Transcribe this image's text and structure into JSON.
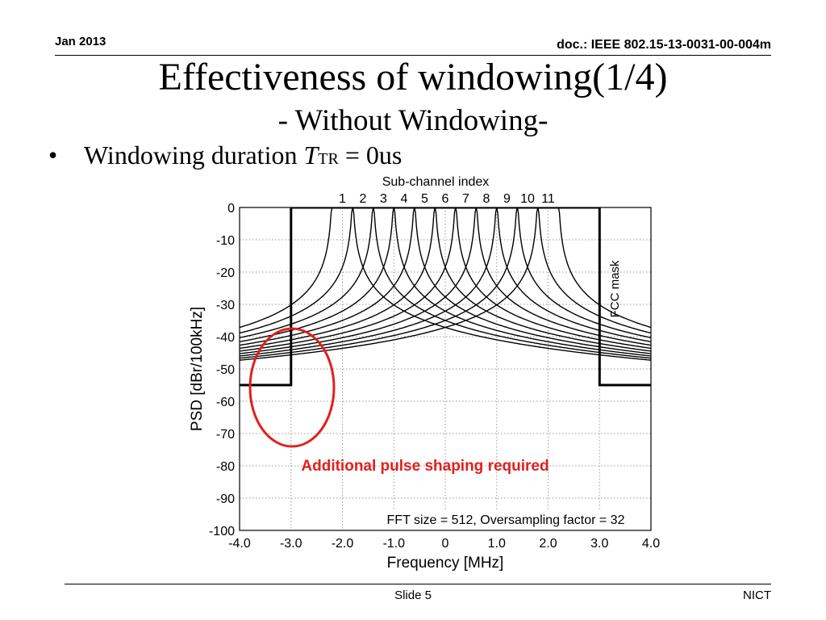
{
  "header": {
    "date": "Jan 2013",
    "doc": "doc.: IEEE 802.15-13-0031-00-004m"
  },
  "slide": {
    "title": "Effectiveness of windowing(1/4)",
    "subtitle": "- Without Windowing-",
    "bullet_prefix": "Windowing duration ",
    "bullet_var": "T",
    "bullet_sub": "TR",
    "bullet_suffix": " = 0us"
  },
  "chart_data": {
    "type": "line",
    "xlabel": "Frequency [MHz]",
    "ylabel": "PSD [dBr/100kHz]",
    "top_axis_label": "Sub-channel index",
    "xlim": [
      -4.0,
      4.0
    ],
    "ylim": [
      -100,
      0
    ],
    "x_ticks": [
      -4.0,
      -3.0,
      -2.0,
      -1.0,
      0,
      1.0,
      2.0,
      3.0,
      4.0
    ],
    "x_tick_labels": [
      "-4.0",
      "-3.0",
      "-2.0",
      "-1.0",
      "0",
      "1.0",
      "2.0",
      "3.0",
      "4.0"
    ],
    "y_ticks": [
      0,
      -10,
      -20,
      -30,
      -40,
      -50,
      -60,
      -70,
      -80,
      -90,
      -100
    ],
    "y_tick_labels": [
      "0",
      "-10",
      "-20",
      "-30",
      "-40",
      "-50",
      "-60",
      "-70",
      "-80",
      "-90",
      "-100"
    ],
    "grid": true,
    "subchannels": {
      "labels": [
        "1",
        "2",
        "3",
        "4",
        "5",
        "6",
        "7",
        "8",
        "9",
        "10",
        "11"
      ],
      "center_mhz": [
        -2.0,
        -1.6,
        -1.2,
        -0.8,
        -0.4,
        0.0,
        0.4,
        0.8,
        1.2,
        1.6,
        2.0
      ],
      "half_width_mhz": 0.2,
      "floor_db": -61
    },
    "fcc_mask": {
      "label": "FCC mask",
      "x": [
        -4.0,
        -3.0,
        -3.0,
        3.0,
        3.0,
        4.0
      ],
      "y": [
        -55,
        -55,
        0,
        0,
        -55,
        -55
      ]
    },
    "annotation": "FFT size = 512, Oversampling factor = 32",
    "callout": {
      "text": "Additional pulse shaping required",
      "color": "#e0201c"
    }
  },
  "footer": {
    "slide": "Slide 5",
    "org": "NICT"
  }
}
